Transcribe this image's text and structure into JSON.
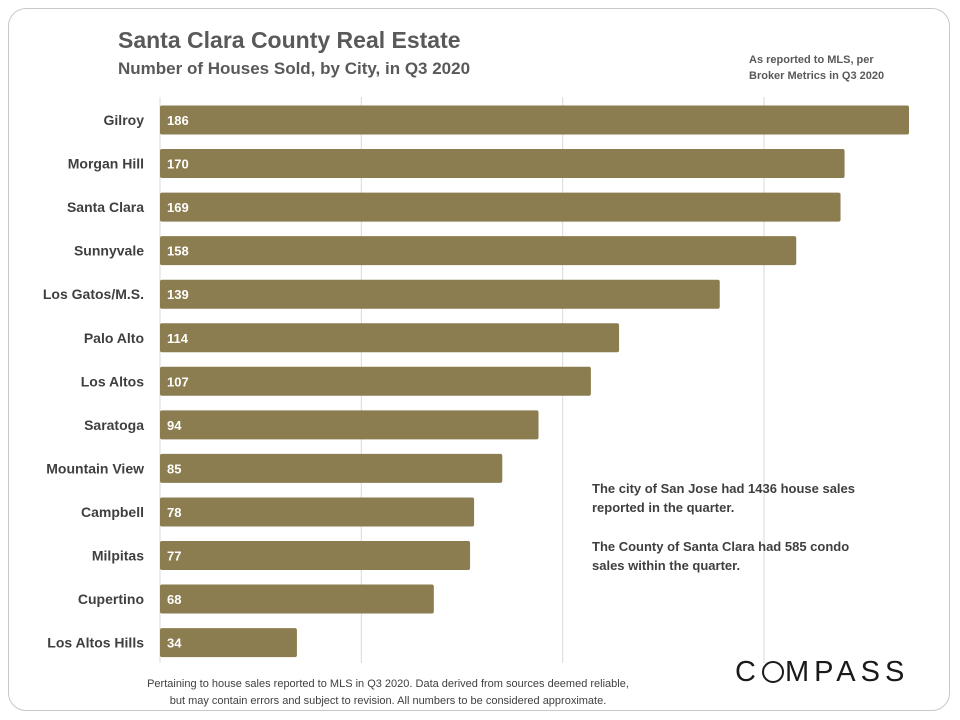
{
  "header": {
    "title": "Santa Clara County Real Estate",
    "subtitle": "Number of Houses Sold, by City, in Q3 2020",
    "source_note_line1": "As reported to MLS, per",
    "source_note_line2": "Broker Metrics in Q3 2020"
  },
  "annotations": {
    "line1": "The city of San Jose had 1436 house sales",
    "line2": "reported in the quarter.",
    "line3": "The County of Santa Clara had 585 condo",
    "line4": "sales within the quarter."
  },
  "footer": {
    "line1": "Pertaining to house sales reported to MLS in Q3 2020. Data derived from sources deemed reliable,",
    "line2": "but may contain errors and subject to revision. All numbers to be considered approximate.",
    "logo_left": "C",
    "logo_right": "MPASS"
  },
  "colors": {
    "bar": "#8b7d4f",
    "bar_label": "#ffffff",
    "grid": "#d9d9d9",
    "category_label": "#3f3f3f"
  },
  "chart_data": {
    "type": "bar",
    "orientation": "horizontal",
    "categories": [
      "Gilroy",
      "Morgan Hill",
      "Santa Clara",
      "Sunnyvale",
      "Los Gatos/M.S.",
      "Palo Alto",
      "Los Altos",
      "Saratoga",
      "Mountain View",
      "Campbell",
      "Milpitas",
      "Cupertino",
      "Los Altos Hills"
    ],
    "values": [
      186,
      170,
      169,
      158,
      139,
      114,
      107,
      94,
      85,
      78,
      77,
      68,
      34
    ],
    "xlim": [
      0,
      186
    ],
    "gridlines": [
      50,
      100,
      150
    ],
    "grid": true,
    "legend": "none"
  }
}
